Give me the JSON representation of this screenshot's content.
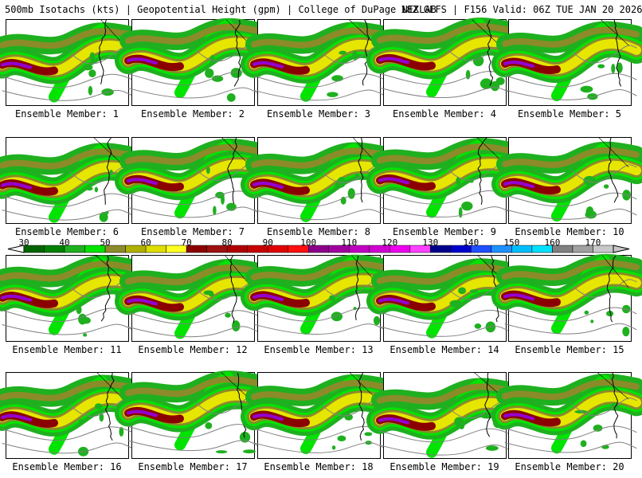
{
  "header": {
    "title": "500mb Isotachs (kts) | Geopotential Height (gpm) | College of DuPage NEXLAB",
    "run_info": "18Z GEFS | F156 Valid: 06Z TUE JAN 20 2026"
  },
  "colorbar": {
    "ticks": [
      "30",
      "40",
      "50",
      "60",
      "70",
      "80",
      "90",
      "100",
      "110",
      "120",
      "130",
      "140",
      "150",
      "160",
      "170"
    ],
    "colors": [
      "#006400",
      "#008000",
      "#1fb01f",
      "#00e400",
      "#8b8b2a",
      "#b0b000",
      "#dede00",
      "#ffff20",
      "#8b0000",
      "#9e1010",
      "#b00000",
      "#c80000",
      "#e00000",
      "#ff1010",
      "#8b008b",
      "#a000a0",
      "#c000c0",
      "#d000d0",
      "#ee00ee",
      "#ff40ff",
      "#00008b",
      "#0000cd",
      "#1e50ff",
      "#1e90ff",
      "#00bfff",
      "#00e0ff",
      "#808080",
      "#a0a0a0",
      "#c8c8c8"
    ]
  },
  "map_colors": {
    "green_dark": "#006400",
    "green": "#1fb01f",
    "green_light": "#00e400",
    "olive": "#8b8b2a",
    "yellow": "#e6e600",
    "maroon": "#8b0000",
    "red": "#c80000",
    "purple": "#9400d3",
    "contour": "#808080",
    "coast": "#000000"
  },
  "panels": [
    {
      "label": "Ensemble Member: 1"
    },
    {
      "label": "Ensemble Member: 2"
    },
    {
      "label": "Ensemble Member: 3"
    },
    {
      "label": "Ensemble Member: 4"
    },
    {
      "label": "Ensemble Member: 5"
    },
    {
      "label": "Ensemble Member: 6"
    },
    {
      "label": "Ensemble Member: 7"
    },
    {
      "label": "Ensemble Member: 8"
    },
    {
      "label": "Ensemble Member: 9"
    },
    {
      "label": "Ensemble Member: 10"
    },
    {
      "label": "Ensemble Member: 11"
    },
    {
      "label": "Ensemble Member: 12"
    },
    {
      "label": "Ensemble Member: 13"
    },
    {
      "label": "Ensemble Member: 14"
    },
    {
      "label": "Ensemble Member: 15"
    },
    {
      "label": "Ensemble Member: 16"
    },
    {
      "label": "Ensemble Member: 17"
    },
    {
      "label": "Ensemble Member: 18"
    },
    {
      "label": "Ensemble Member: 19"
    },
    {
      "label": "Ensemble Member: 20"
    }
  ]
}
